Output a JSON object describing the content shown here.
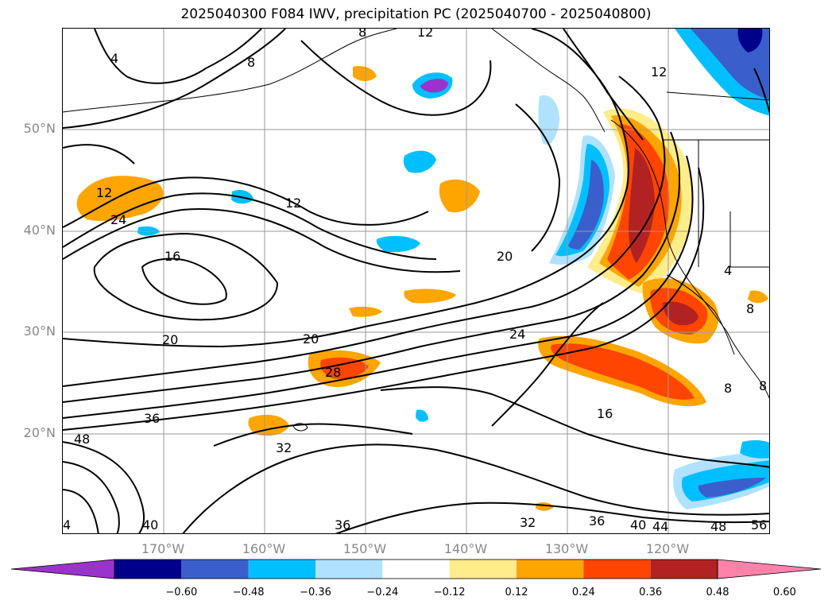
{
  "title": "2025040300 F084 IWV, precipitation PC (2025040700 - 2025040800)",
  "map": {
    "lat_labels": [
      "50°N",
      "40°N",
      "30°N",
      "20°N"
    ],
    "lon_labels": [
      "170°W",
      "160°W",
      "150°W",
      "140°W",
      "130°W",
      "120°W"
    ],
    "contour_labels": [
      "4",
      "8",
      "8",
      "12",
      "12",
      "12",
      "12",
      "16",
      "16",
      "20",
      "20",
      "20",
      "24",
      "24",
      "28",
      "32",
      "32",
      "36",
      "36",
      "36",
      "40",
      "40",
      "44",
      "48",
      "48",
      "56",
      "4",
      "8",
      "8",
      "8",
      "4"
    ]
  },
  "colorbar": {
    "ticks": [
      "−0.60",
      "−0.48",
      "−0.36",
      "−0.24",
      "−0.12",
      "0.12",
      "0.24",
      "0.36",
      "0.48",
      "0.60"
    ],
    "colors": [
      "#9933cc",
      "#00008b",
      "#3a5fcd",
      "#00bfff",
      "#b0e2ff",
      "#ffffff",
      "#ffec8b",
      "#ffa500",
      "#ff4500",
      "#b22222",
      "#ff82ab"
    ]
  }
}
